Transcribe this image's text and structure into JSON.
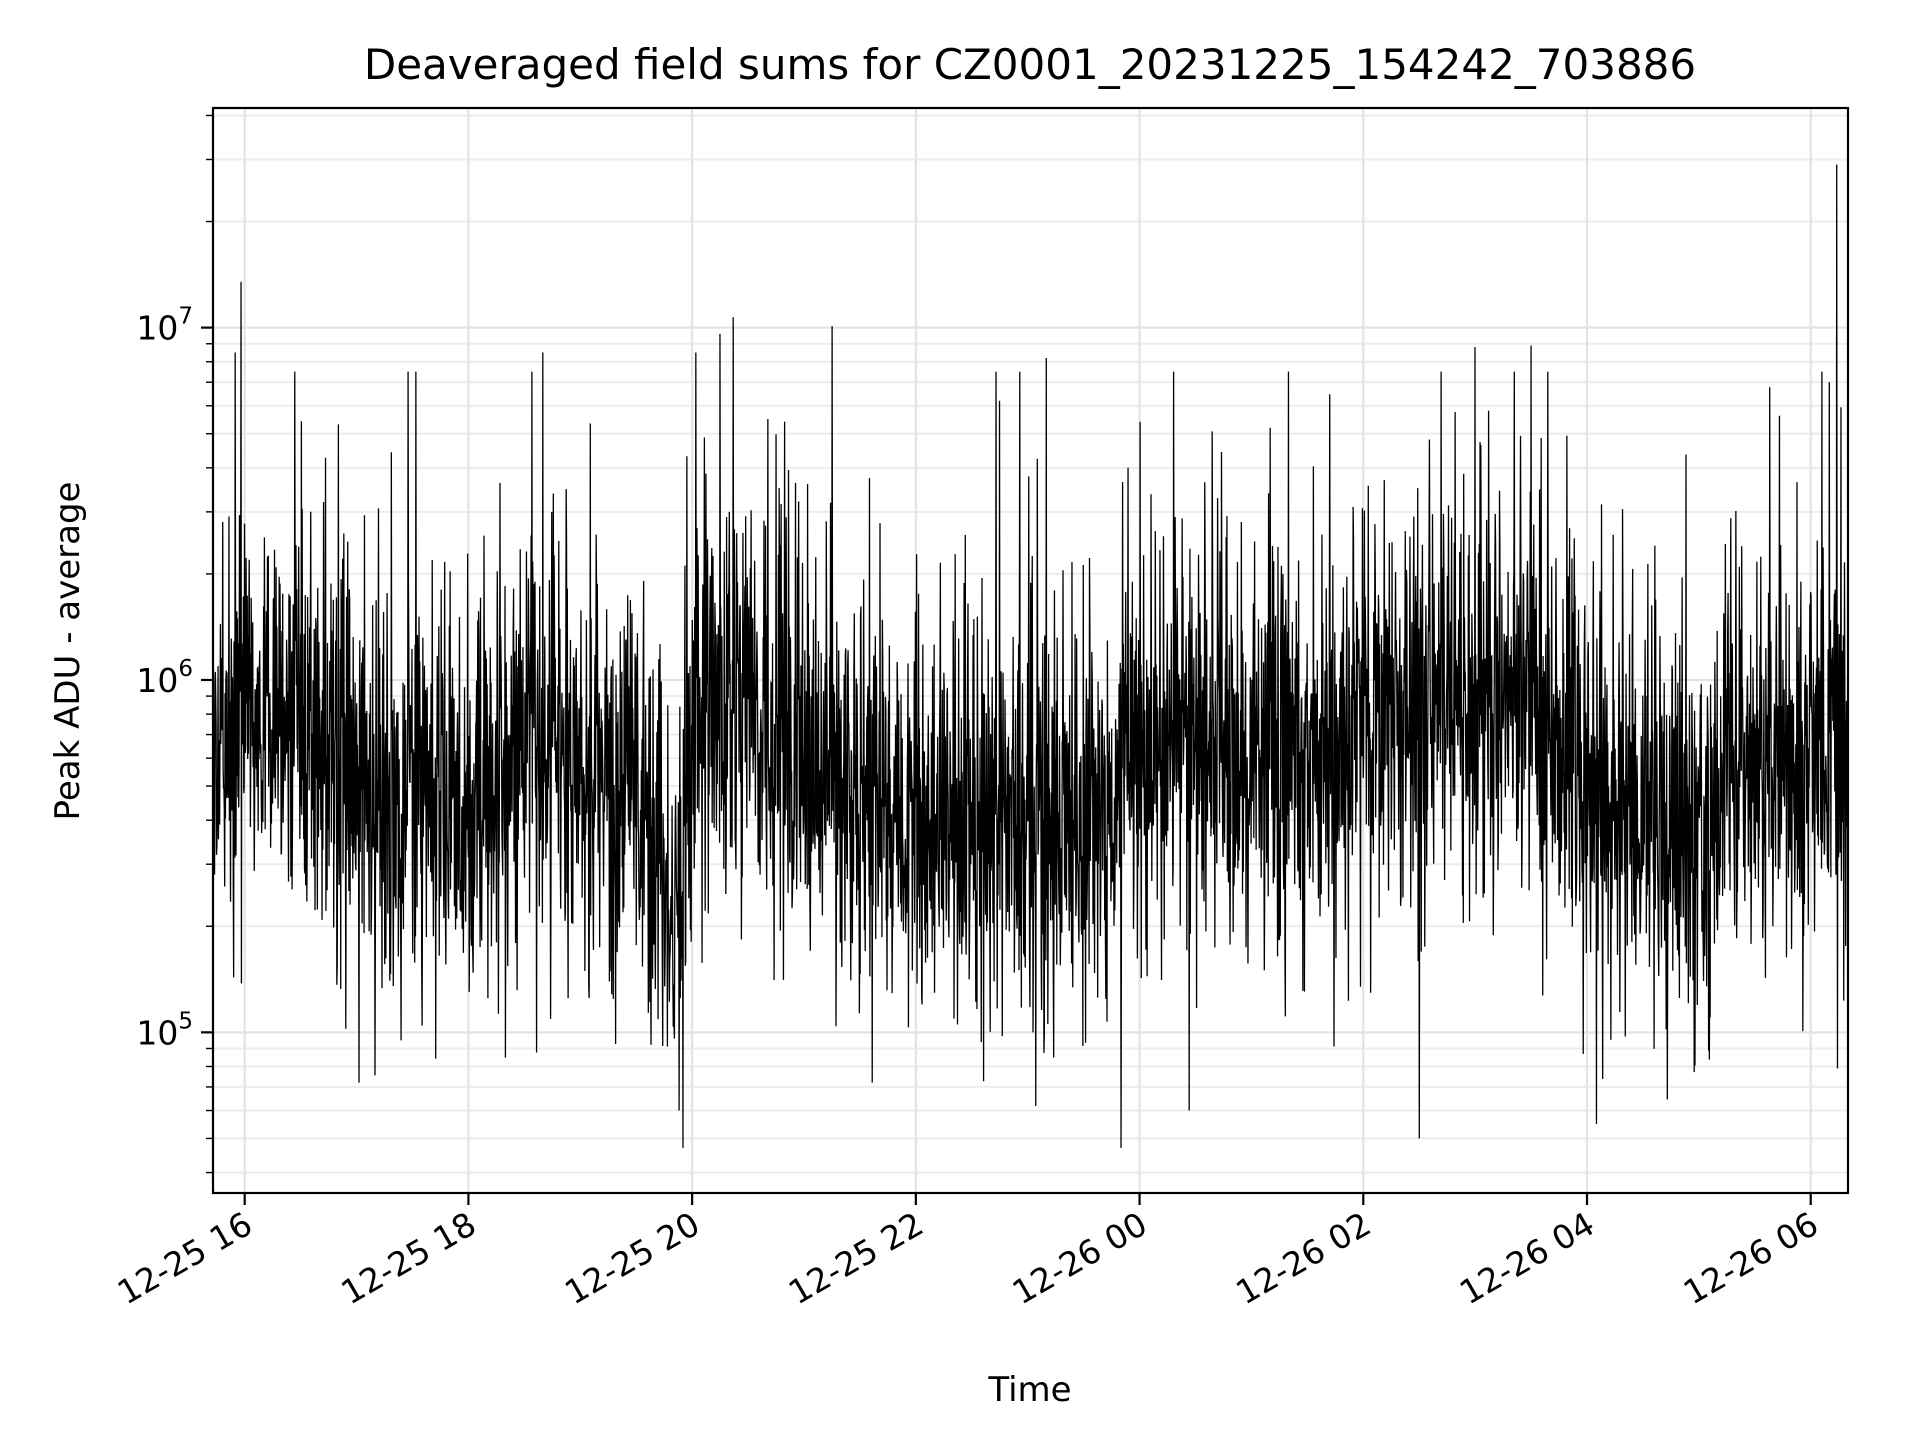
{
  "chart_data": {
    "type": "line",
    "title": "Deaveraged field sums for CZ0001_20231225_154242_703886",
    "xlabel": "Time",
    "ylabel": "Peak ADU - average",
    "yscale": "log",
    "xlim": [
      "2023-12-25 15:43",
      "2023-12-26 06:20"
    ],
    "ylim": [
      35000,
      42000000
    ],
    "grid": true,
    "x_ticks": [
      {
        "value": "2023-12-25 16:00",
        "label": "12-25 16"
      },
      {
        "value": "2023-12-25 18:00",
        "label": "12-25 18"
      },
      {
        "value": "2023-12-25 20:00",
        "label": "12-25 20"
      },
      {
        "value": "2023-12-25 22:00",
        "label": "12-25 22"
      },
      {
        "value": "2023-12-26 00:00",
        "label": "12-26 00"
      },
      {
        "value": "2023-12-26 02:00",
        "label": "12-26 02"
      },
      {
        "value": "2023-12-26 04:00",
        "label": "12-26 04"
      },
      {
        "value": "2023-12-26 06:00",
        "label": "12-26 06"
      }
    ],
    "y_ticks": [
      {
        "value": 100000,
        "base": "10",
        "exp": "5"
      },
      {
        "value": 1000000,
        "base": "10",
        "exp": "6"
      },
      {
        "value": 10000000,
        "base": "10",
        "exp": "7"
      }
    ],
    "series": [
      {
        "color": "#000000",
        "approx_median_profile": [
          {
            "x": "2023-12-25 15:45",
            "y": 700000
          },
          {
            "x": "2023-12-25 16:00",
            "y": 1000000
          },
          {
            "x": "2023-12-25 16:30",
            "y": 750000
          },
          {
            "x": "2023-12-25 17:00",
            "y": 550000
          },
          {
            "x": "2023-12-25 17:30",
            "y": 450000
          },
          {
            "x": "2023-12-25 18:00",
            "y": 420000
          },
          {
            "x": "2023-12-25 18:30",
            "y": 700000
          },
          {
            "x": "2023-12-25 19:00",
            "y": 550000
          },
          {
            "x": "2023-12-25 19:30",
            "y": 450000
          },
          {
            "x": "2023-12-25 19:50",
            "y": 220000
          },
          {
            "x": "2023-12-25 20:05",
            "y": 1000000
          },
          {
            "x": "2023-12-25 20:30",
            "y": 750000
          },
          {
            "x": "2023-12-25 21:00",
            "y": 600000
          },
          {
            "x": "2023-12-25 21:30",
            "y": 480000
          },
          {
            "x": "2023-12-25 22:00",
            "y": 420000
          },
          {
            "x": "2023-12-25 22:30",
            "y": 400000
          },
          {
            "x": "2023-12-25 23:00",
            "y": 380000
          },
          {
            "x": "2023-12-25 23:30",
            "y": 330000
          },
          {
            "x": "2023-12-26 00:00",
            "y": 650000
          },
          {
            "x": "2023-12-26 00:30",
            "y": 650000
          },
          {
            "x": "2023-12-26 01:00",
            "y": 600000
          },
          {
            "x": "2023-12-26 01:30",
            "y": 550000
          },
          {
            "x": "2023-12-26 02:00",
            "y": 700000
          },
          {
            "x": "2023-12-26 02:30",
            "y": 800000
          },
          {
            "x": "2023-12-26 03:00",
            "y": 900000
          },
          {
            "x": "2023-12-26 03:30",
            "y": 800000
          },
          {
            "x": "2023-12-26 04:00",
            "y": 450000
          },
          {
            "x": "2023-12-26 04:30",
            "y": 380000
          },
          {
            "x": "2023-12-26 05:00",
            "y": 420000
          },
          {
            "x": "2023-12-26 05:30",
            "y": 520000
          },
          {
            "x": "2023-12-26 06:00",
            "y": 650000
          },
          {
            "x": "2023-12-26 06:20",
            "y": 600000
          }
        ],
        "peaks": [
          {
            "x": "2023-12-25 15:58",
            "y": 13500000
          },
          {
            "x": "2023-12-25 15:55",
            "y": 8500000
          },
          {
            "x": "2023-12-25 18:40",
            "y": 8500000
          },
          {
            "x": "2023-12-25 20:02",
            "y": 8500000
          },
          {
            "x": "2023-12-25 20:15",
            "y": 9600000
          },
          {
            "x": "2023-12-25 20:22",
            "y": 10700000
          },
          {
            "x": "2023-12-25 21:15",
            "y": 10100000
          },
          {
            "x": "2023-12-25 22:45",
            "y": 6200000
          },
          {
            "x": "2023-12-25 23:10",
            "y": 8200000
          },
          {
            "x": "2023-12-26 02:30",
            "y": 8000000
          },
          {
            "x": "2023-12-26 03:00",
            "y": 8800000
          },
          {
            "x": "2023-12-26 03:30",
            "y": 8900000
          },
          {
            "x": "2023-12-26 06:10",
            "y": 7000000
          },
          {
            "x": "2023-12-26 06:14",
            "y": 29000000
          }
        ],
        "troughs": [
          {
            "x": "2023-12-25 19:55",
            "y": 47000
          },
          {
            "x": "2023-12-25 23:50",
            "y": 47000
          },
          {
            "x": "2023-12-26 02:30",
            "y": 50000
          },
          {
            "x": "2023-12-26 04:05",
            "y": 55000
          }
        ]
      }
    ]
  }
}
